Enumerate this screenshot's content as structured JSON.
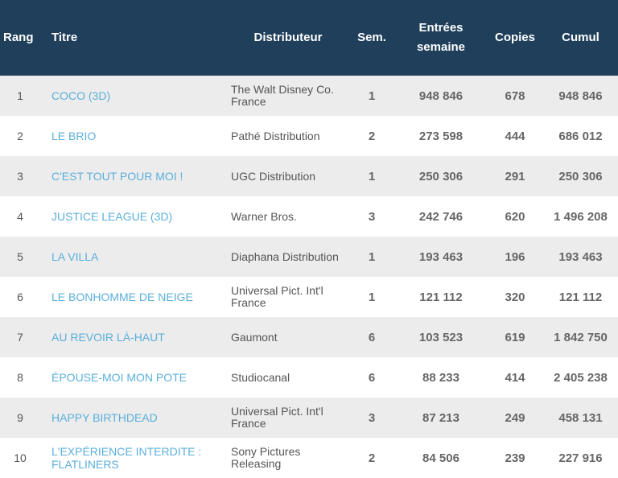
{
  "columns": {
    "rank": "Rang",
    "title": "Titre",
    "distributor": "Distributeur",
    "weeks": "Sem.",
    "entries_line1": "Entrées",
    "entries_line2": "semaine",
    "copies": "Copies",
    "cumul": "Cumul"
  },
  "rows": [
    {
      "rank": "1",
      "title": "COCO (3D)",
      "distributor": "The Walt Disney Co. France",
      "weeks": "1",
      "entries": "948 846",
      "copies": "678",
      "cumul": "948 846"
    },
    {
      "rank": "2",
      "title": "LE BRIO",
      "distributor": "Pathé Distribution",
      "weeks": "2",
      "entries": "273 598",
      "copies": "444",
      "cumul": "686 012"
    },
    {
      "rank": "3",
      "title": "C'EST TOUT POUR MOI !",
      "distributor": "UGC Distribution",
      "weeks": "1",
      "entries": "250 306",
      "copies": "291",
      "cumul": "250 306"
    },
    {
      "rank": "4",
      "title": "JUSTICE LEAGUE (3D)",
      "distributor": "Warner Bros.",
      "weeks": "3",
      "entries": "242 746",
      "copies": "620",
      "cumul": "1 496 208"
    },
    {
      "rank": "5",
      "title": "LA VILLA",
      "distributor": "Diaphana Distribution",
      "weeks": "1",
      "entries": "193 463",
      "copies": "196",
      "cumul": "193 463"
    },
    {
      "rank": "6",
      "title": "LE BONHOMME DE NEIGE",
      "distributor": "Universal Pict. Int'l France",
      "weeks": "1",
      "entries": "121 112",
      "copies": "320",
      "cumul": "121 112"
    },
    {
      "rank": "7",
      "title": "AU REVOIR LÀ-HAUT",
      "distributor": "Gaumont",
      "weeks": "6",
      "entries": "103 523",
      "copies": "619",
      "cumul": "1 842 750"
    },
    {
      "rank": "8",
      "title": "ÉPOUSE-MOI MON POTE",
      "distributor": "Studiocanal",
      "weeks": "6",
      "entries": "88 233",
      "copies": "414",
      "cumul": "2 405 238"
    },
    {
      "rank": "9",
      "title": "HAPPY BIRTHDEAD",
      "distributor": "Universal Pict. Int'l France",
      "weeks": "3",
      "entries": "87 213",
      "copies": "249",
      "cumul": "458 131"
    },
    {
      "rank": "10",
      "title": "L'EXPÉRIENCE INTERDITE : FLATLINERS",
      "distributor": "Sony Pictures Releasing",
      "weeks": "2",
      "entries": "84 506",
      "copies": "239",
      "cumul": "227 916"
    }
  ]
}
